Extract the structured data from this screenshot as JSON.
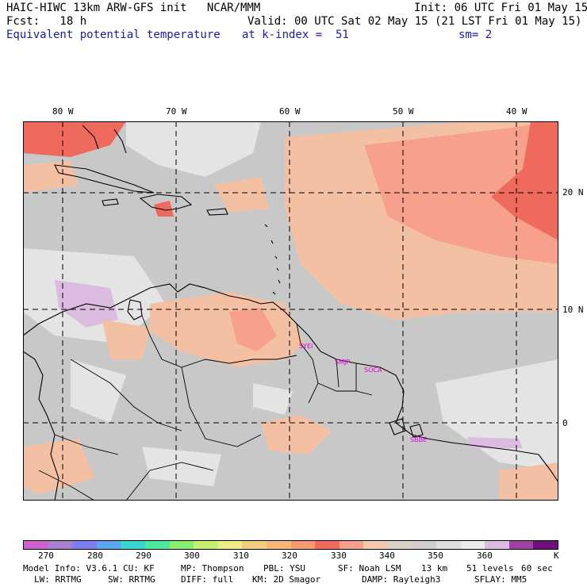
{
  "header": {
    "line1_left": "HAIC-HIWC 13km ARW-GFS init   NCAR/MMM",
    "line1_right": "Init: 06 UTC Fri 01 May 15",
    "line2_left": "Fcst:   18 h",
    "line2_right": "Valid: 00 UTC Sat 02 May 15 (21 LST Fri 01 May 15)",
    "line3_left": "Equivalent potential temperature",
    "line3_mid": "at k-index =  51",
    "line3_right": "sm= 2"
  },
  "axes": {
    "lon_labels": [
      "80 W",
      "70 W",
      "60 W",
      "50 W",
      "40 W"
    ],
    "lat_labels": [
      "20 N",
      "10 N",
      "0"
    ]
  },
  "stations": [
    "SYEI",
    "SMJP",
    "SOCA",
    "SBBE"
  ],
  "colorbar": {
    "colors": [
      "#cf62cf",
      "#a97fcf",
      "#7f7fef",
      "#5ea5ef",
      "#3cd4cf",
      "#4fe89f",
      "#88ee70",
      "#c6f070",
      "#eeee88",
      "#f0d080",
      "#f7b87a",
      "#f79a70",
      "#ee6a5c",
      "#f7a08c",
      "#f4c8b0",
      "#dcd2c8",
      "#cfcfcf",
      "#dedede",
      "#ebebeb",
      "#dbbbe0",
      "#a040a0",
      "#70107a"
    ],
    "tick_labels": [
      "270",
      "280",
      "290",
      "300",
      "310",
      "320",
      "330",
      "340",
      "350",
      "360",
      "K"
    ]
  },
  "footer": {
    "line1": [
      "Model Info: V3.6.1",
      "CU: KF",
      "MP: Thompson",
      "PBL: YSU",
      "SF: Noah LSM",
      "13 km",
      "51 levels",
      "60 sec"
    ],
    "line2": [
      "LW: RRTMG",
      "SW: RRTMG",
      "DIFF: full",
      "KM: 2D Smagor",
      "DAMP: Rayleigh3",
      "SFLAY: MM5"
    ]
  },
  "palette": {
    "gray": "#c8c8c8",
    "light_gray": "#e4e4e4",
    "peach": "#f4c0a4",
    "salmon": "#f7a08c",
    "red": "#ee6a5c",
    "lilac": "#dbbbe0"
  }
}
